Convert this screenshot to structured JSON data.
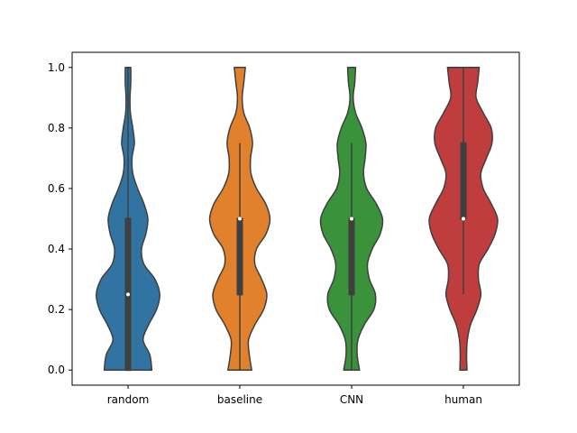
{
  "chart_data": {
    "type": "violin",
    "title": "",
    "xlabel": "",
    "ylabel": "",
    "ylim": [
      -0.05,
      1.05
    ],
    "y_ticks": [
      "0.0",
      "0.2",
      "0.4",
      "0.6",
      "0.8",
      "1.0"
    ],
    "y_tick_values": [
      0.0,
      0.2,
      0.4,
      0.6,
      0.8,
      1.0
    ],
    "grid": false,
    "categories": [
      "random",
      "baseline",
      "CNN",
      "human"
    ],
    "series": [
      {
        "category": "random",
        "color": "#3274a1",
        "min": 0.0,
        "q1": 0.0,
        "median": 0.25,
        "q3": 0.5,
        "max": 1.0,
        "density_y": [
          0.0,
          0.05,
          0.1,
          0.15,
          0.2,
          0.25,
          0.3,
          0.35,
          0.4,
          0.45,
          0.5,
          0.55,
          0.6,
          0.65,
          0.7,
          0.75,
          0.8,
          0.85,
          0.9,
          0.95,
          1.0
        ],
        "density_w": [
          0.6,
          0.55,
          0.38,
          0.52,
          0.72,
          0.8,
          0.68,
          0.4,
          0.34,
          0.45,
          0.5,
          0.4,
          0.24,
          0.12,
          0.1,
          0.16,
          0.12,
          0.06,
          0.05,
          0.07,
          0.07
        ]
      },
      {
        "category": "baseline",
        "color": "#e1812c",
        "min": 0.0,
        "q1": 0.25,
        "median": 0.5,
        "q3": 0.5,
        "max": 0.75,
        "density_y": [
          0.0,
          0.05,
          0.1,
          0.15,
          0.2,
          0.25,
          0.3,
          0.35,
          0.4,
          0.45,
          0.5,
          0.55,
          0.6,
          0.65,
          0.7,
          0.75,
          0.8,
          0.85,
          0.9,
          0.95,
          1.0
        ],
        "density_w": [
          0.3,
          0.24,
          0.22,
          0.38,
          0.6,
          0.68,
          0.55,
          0.38,
          0.42,
          0.66,
          0.76,
          0.65,
          0.42,
          0.28,
          0.27,
          0.32,
          0.25,
          0.1,
          0.06,
          0.1,
          0.14
        ]
      },
      {
        "category": "CNN",
        "color": "#3a923a",
        "min": 0.0,
        "q1": 0.25,
        "median": 0.5,
        "q3": 0.5,
        "max": 0.75,
        "density_y": [
          0.0,
          0.05,
          0.1,
          0.15,
          0.2,
          0.25,
          0.3,
          0.35,
          0.4,
          0.45,
          0.5,
          0.55,
          0.6,
          0.65,
          0.7,
          0.75,
          0.8,
          0.85,
          0.9,
          0.95,
          1.0
        ],
        "density_w": [
          0.2,
          0.14,
          0.16,
          0.32,
          0.56,
          0.6,
          0.45,
          0.4,
          0.52,
          0.72,
          0.78,
          0.62,
          0.38,
          0.3,
          0.34,
          0.36,
          0.26,
          0.1,
          0.04,
          0.08,
          0.1
        ]
      },
      {
        "category": "human",
        "color": "#c03d3e",
        "min": 0.25,
        "q1": 0.5,
        "median": 0.5,
        "q3": 0.75,
        "max": 1.0,
        "density_y": [
          0.0,
          0.05,
          0.1,
          0.15,
          0.2,
          0.25,
          0.3,
          0.35,
          0.4,
          0.45,
          0.5,
          0.55,
          0.6,
          0.65,
          0.7,
          0.75,
          0.8,
          0.85,
          0.9,
          0.95,
          1.0
        ],
        "density_w": [
          0.09,
          0.08,
          0.1,
          0.18,
          0.34,
          0.44,
          0.38,
          0.4,
          0.62,
          0.8,
          0.86,
          0.7,
          0.5,
          0.44,
          0.58,
          0.72,
          0.7,
          0.5,
          0.32,
          0.36,
          0.4
        ]
      }
    ]
  }
}
